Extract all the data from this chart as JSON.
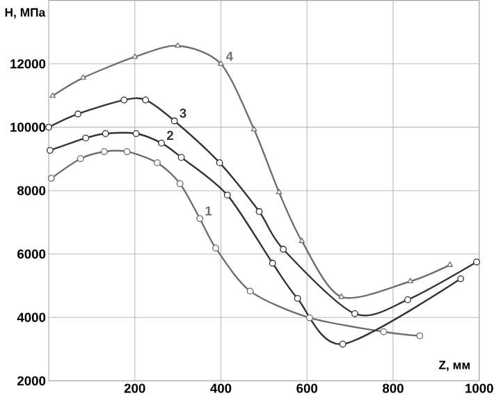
{
  "chart_data": {
    "type": "line",
    "xlabel": "Z, мм",
    "ylabel": "H, МПа",
    "xlim": [
      0,
      1000
    ],
    "ylim": [
      2000,
      14000
    ],
    "xticks": [
      200,
      400,
      600,
      800,
      1000
    ],
    "yticks": [
      2000,
      4000,
      6000,
      8000,
      10000,
      12000
    ],
    "grid": true,
    "line_style": "solid",
    "series": [
      {
        "name": "1",
        "color": "#6e6e6e",
        "marker": "circle",
        "x": [
          6,
          74,
          129,
          182,
          252,
          305,
          351,
          388,
          468,
          606,
          778,
          862
        ],
        "values": [
          8390,
          9010,
          9230,
          9230,
          8880,
          8220,
          7120,
          6190,
          4830,
          3990,
          3550,
          3420
        ]
      },
      {
        "name": "2",
        "color": "#333333",
        "marker": "circle",
        "x": [
          3,
          86,
          132,
          203,
          262,
          308,
          415,
          520,
          578,
          683,
          957
        ],
        "values": [
          9270,
          9660,
          9800,
          9800,
          9500,
          9050,
          7860,
          5710,
          4600,
          3160,
          5220
        ]
      },
      {
        "name": "3",
        "color": "#333333",
        "marker": "circle",
        "x": [
          0,
          68,
          175,
          225,
          292,
          397,
          489,
          545,
          711,
          834,
          994
        ],
        "values": [
          10000,
          10420,
          10860,
          10860,
          10200,
          8880,
          7340,
          6150,
          4120,
          4560,
          5750
        ]
      },
      {
        "name": "4",
        "color": "#6e6e6e",
        "marker": "triangle",
        "x": [
          9,
          80,
          200,
          300,
          400,
          477,
          535,
          588,
          680,
          840,
          932
        ],
        "values": [
          10990,
          11560,
          12220,
          12570,
          12000,
          9930,
          7950,
          6410,
          4650,
          5140,
          5660
        ]
      }
    ]
  }
}
